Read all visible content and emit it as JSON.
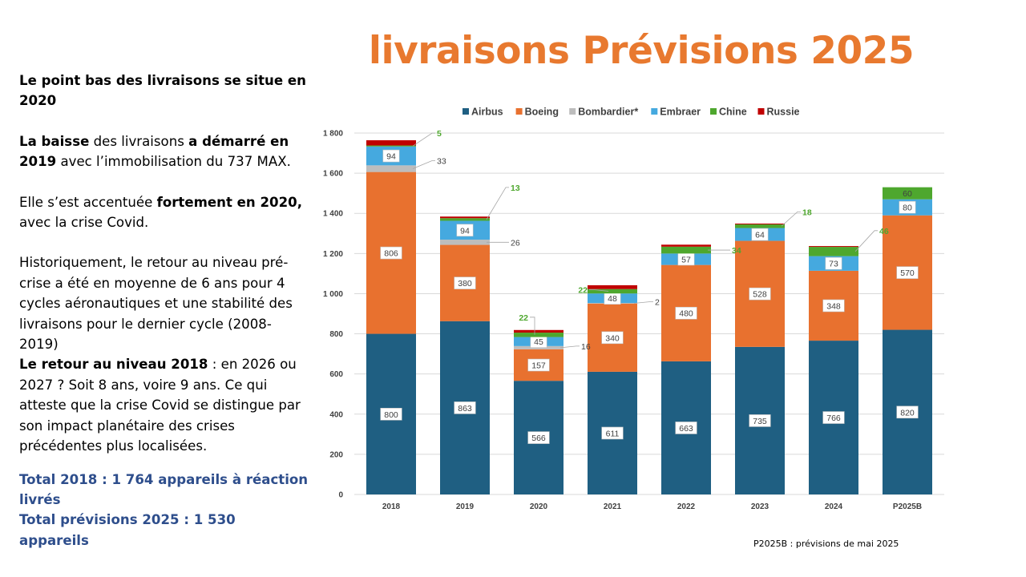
{
  "slide": {
    "title": "livraisons Prévisions 2025",
    "footnote": "P2025B : prévisions de mai 2025"
  },
  "text_panel": {
    "p1": "Le point bas des livraisons se situe en 2020",
    "p2_a": "La baisse",
    "p2_b": " des livraisons ",
    "p2_c": "a démarré en 2019",
    "p2_d": " avec l’immobilisation du 737 MAX.",
    "p3_a": "Elle s’est accentuée ",
    "p3_b": "fortement en 2020,",
    "p3_c": " avec la crise Covid.",
    "p4": "Historiquement, le retour au niveau pré-crise a été en moyenne de 6 ans pour 4 cycles aéronautiques et une stabilité des livraisons pour le dernier cycle (2008-2019)",
    "p5_a": "Le retour au niveau 2018",
    "p5_b": " : en 2026 ou 2027 ? Soit 8 ans, voire 9 ans. Ce qui atteste que la crise Covid se distingue par son impact planétaire des crises précédentes plus localisées.",
    "total_1": "Total 2018 : 1 764 appareils à réaction livrés",
    "total_2": "Total prévisions 2025 : 1 530 appareils"
  },
  "chart_data": {
    "type": "bar",
    "stacked": true,
    "categories": [
      "2018",
      "2019",
      "2020",
      "2021",
      "2022",
      "2023",
      "2024",
      "P2025B"
    ],
    "ylim": [
      0,
      1800
    ],
    "yticks": [
      "0",
      "200",
      "400",
      "600",
      "800",
      "1 000",
      "1 200",
      "1 400",
      "1 600",
      "1 800"
    ],
    "grid": true,
    "legend_position": "top",
    "series": [
      {
        "name": "Airbus",
        "color": "#1F5F82",
        "values": [
          800,
          863,
          566,
          611,
          663,
          735,
          766,
          820
        ]
      },
      {
        "name": "Boeing",
        "color": "#E8712F",
        "values": [
          806,
          380,
          157,
          340,
          480,
          528,
          348,
          570
        ]
      },
      {
        "name": "Bombardier*",
        "color": "#BDBDBD",
        "values": [
          33,
          26,
          16,
          2,
          0,
          0,
          0,
          0
        ]
      },
      {
        "name": "Embraer",
        "color": "#45A9DF",
        "values": [
          94,
          94,
          45,
          48,
          57,
          64,
          73,
          80
        ]
      },
      {
        "name": "Chine",
        "color": "#4EA72E",
        "values": [
          5,
          13,
          22,
          22,
          34,
          18,
          46,
          60
        ]
      },
      {
        "name": "Russie",
        "color": "#C00000",
        "values": [
          26,
          8,
          13,
          19,
          10,
          4,
          4,
          0
        ]
      }
    ],
    "data_labels": {
      "Airbus": [
        "800",
        "863",
        "566",
        "611",
        "663",
        "735",
        "766",
        "820"
      ],
      "Boeing": [
        "806",
        "380",
        "157",
        "340",
        "480",
        "528",
        "348",
        "570"
      ],
      "Bombardier*": [
        "33",
        "26",
        "16",
        "2",
        "",
        "",
        "",
        ""
      ],
      "Embraer": [
        "94",
        "94",
        "45",
        "48",
        "57",
        "64",
        "73",
        "80"
      ],
      "Chine": [
        "5",
        "13",
        "22",
        "22",
        "34",
        "18",
        "46",
        "60"
      ]
    }
  }
}
